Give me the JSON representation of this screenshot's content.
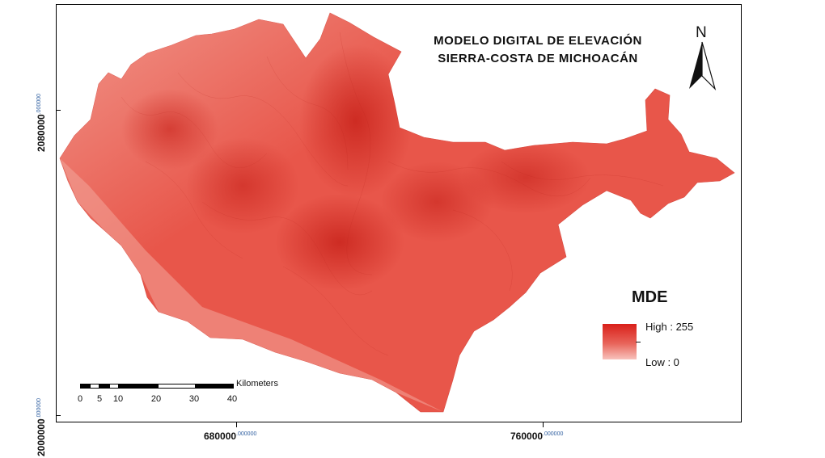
{
  "map": {
    "title_line_1": "MODELO DIGITAL DE ELEVACIÓN",
    "title_line_2": "SIERRA-COSTA DE MICHOACÁN",
    "north_label": "N"
  },
  "legend": {
    "title": "MDE",
    "high_label": "High : 255",
    "low_label": "Low : 0",
    "color_high": "#d9201a",
    "color_low": "#f8c2bc"
  },
  "scale_bar": {
    "units": "Kilometers",
    "labels": [
      "0",
      "5",
      "10",
      "20",
      "30",
      "40"
    ]
  },
  "axes": {
    "x_ticks": [
      {
        "value": "680000",
        "decimals": ".000000"
      },
      {
        "value": "760000",
        "decimals": ".000000"
      }
    ],
    "y_ticks": [
      {
        "value": "2080000",
        "decimals": ".000000"
      },
      {
        "value": "2000000",
        "decimals": ".000000"
      }
    ]
  },
  "colors": {
    "terrain_base": "#e8564a",
    "terrain_dark": "#cf2a22",
    "coast_light": "#f09a8f"
  }
}
